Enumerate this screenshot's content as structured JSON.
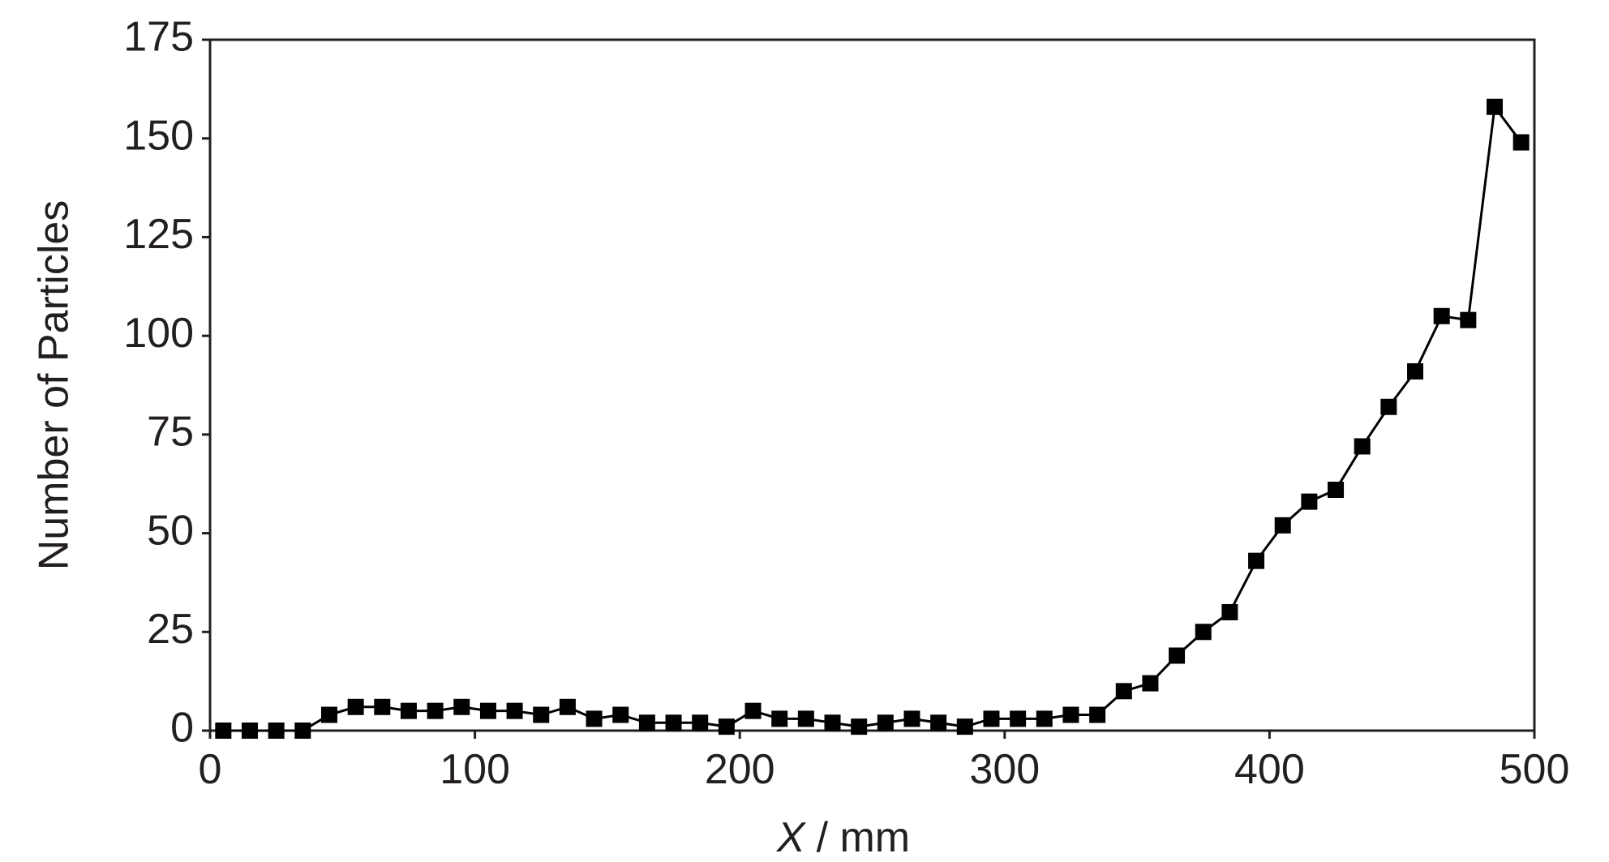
{
  "chart_data": {
    "type": "line",
    "xlabel": {
      "symbol": "X",
      "unit": "/ mm"
    },
    "ylabel": "Number of Particles",
    "x": [
      5,
      15,
      25,
      35,
      45,
      55,
      65,
      75,
      85,
      95,
      105,
      115,
      125,
      135,
      145,
      155,
      165,
      175,
      185,
      195,
      205,
      215,
      225,
      235,
      245,
      255,
      265,
      275,
      285,
      295,
      305,
      315,
      325,
      335,
      345,
      355,
      365,
      375,
      385,
      395,
      405,
      415,
      425,
      435,
      445,
      455,
      465,
      475,
      485,
      495
    ],
    "series": [
      {
        "color": "#000000",
        "values": [
          0,
          0,
          0,
          0,
          4,
          6,
          6,
          5,
          5,
          6,
          5,
          5,
          4,
          6,
          3,
          4,
          2,
          2,
          2,
          1,
          5,
          3,
          3,
          2,
          1,
          2,
          3,
          2,
          1,
          3,
          3,
          3,
          4,
          4,
          10,
          12,
          19,
          25,
          30,
          43,
          52,
          58,
          61,
          72,
          82,
          91,
          105,
          104,
          158,
          149
        ]
      }
    ],
    "xlim": [
      0,
      500
    ],
    "xticks": [
      0,
      100,
      200,
      300,
      400,
      500
    ],
    "ylim": [
      0,
      175
    ],
    "yticks": [
      0,
      25,
      50,
      75,
      100,
      125,
      150,
      175
    ],
    "grid": false
  }
}
